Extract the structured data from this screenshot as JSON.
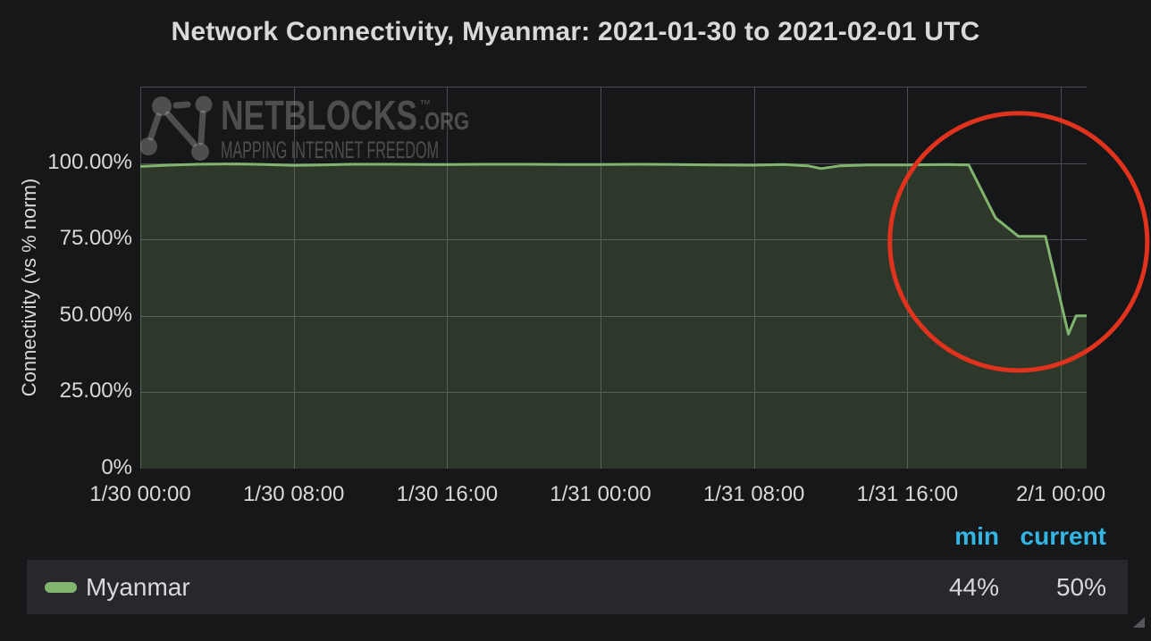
{
  "colors": {
    "page_bg": "#161719",
    "text": "#d8d9da",
    "header_blue": "#33b5e5",
    "series_green": "#81b56f",
    "row_bg": "#28282c"
  },
  "watermark": {
    "brand": "NETBLOCKS",
    "tm": "™",
    "suffix": ".ORG",
    "tagline": "MAPPING INTERNET FREEDOM"
  },
  "chart_data": {
    "type": "area",
    "title": "Network Connectivity, Myanmar: 2021-01-30 to 2021-02-01 UTC",
    "xlabel": "",
    "ylabel": "Connectivity (vs % norm)",
    "x_unit": "hours since 1/30 00:00 UTC",
    "xlim": [
      0,
      49.35
    ],
    "ylim": [
      0,
      125
    ],
    "grid": true,
    "grid_color": "#4a4c50",
    "x_ticks": [
      {
        "hours": 0,
        "label": "1/30 00:00"
      },
      {
        "hours": 8,
        "label": "1/30 08:00"
      },
      {
        "hours": 16,
        "label": "1/30 16:00"
      },
      {
        "hours": 24,
        "label": "1/31 00:00"
      },
      {
        "hours": 32,
        "label": "1/31 08:00"
      },
      {
        "hours": 40,
        "label": "1/31 16:00"
      },
      {
        "hours": 48,
        "label": "2/1 00:00"
      }
    ],
    "y_ticks": [
      {
        "value": 0,
        "label": "0%"
      },
      {
        "value": 25,
        "label": "25.00%"
      },
      {
        "value": 50,
        "label": "50.00%"
      },
      {
        "value": 75,
        "label": "75.00%"
      },
      {
        "value": 100,
        "label": "100.00%"
      }
    ],
    "series": [
      {
        "name": "Myanmar",
        "color": "#81b56f",
        "fill_color": "rgba(126,178,109,0.22)",
        "line_width": 3,
        "points": [
          [
            0,
            98.9
          ],
          [
            1.5,
            99.3
          ],
          [
            3,
            99.6
          ],
          [
            5,
            99.7
          ],
          [
            6.5,
            99.5
          ],
          [
            8,
            99.2
          ],
          [
            9.5,
            99.4
          ],
          [
            11,
            99.6
          ],
          [
            13,
            99.6
          ],
          [
            15,
            99.5
          ],
          [
            16,
            99.5
          ],
          [
            18,
            99.6
          ],
          [
            20,
            99.6
          ],
          [
            22,
            99.5
          ],
          [
            24,
            99.5
          ],
          [
            26,
            99.6
          ],
          [
            28,
            99.5
          ],
          [
            30,
            99.4
          ],
          [
            32,
            99.3
          ],
          [
            33.5,
            99.5
          ],
          [
            34.8,
            99.1
          ],
          [
            35.5,
            98.2
          ],
          [
            36.5,
            99.1
          ],
          [
            38,
            99.4
          ],
          [
            40,
            99.4
          ],
          [
            42,
            99.5
          ],
          [
            43.2,
            99.4
          ],
          [
            44.6,
            82
          ],
          [
            45.8,
            76
          ],
          [
            47.2,
            76
          ],
          [
            48.4,
            44
          ],
          [
            48.8,
            50
          ],
          [
            49.35,
            50
          ]
        ]
      }
    ],
    "annotation_circle": {
      "shape": "circle",
      "color": "#e0321c",
      "stroke_width": 5,
      "center_hours": 45.8,
      "center_percent": 74.2,
      "radius_hours": 6.71
    },
    "legend": {
      "position": "bottom",
      "columns": [
        "min",
        "current"
      ],
      "rows": [
        {
          "series": "Myanmar",
          "min": "44%",
          "current": "50%"
        }
      ]
    }
  }
}
